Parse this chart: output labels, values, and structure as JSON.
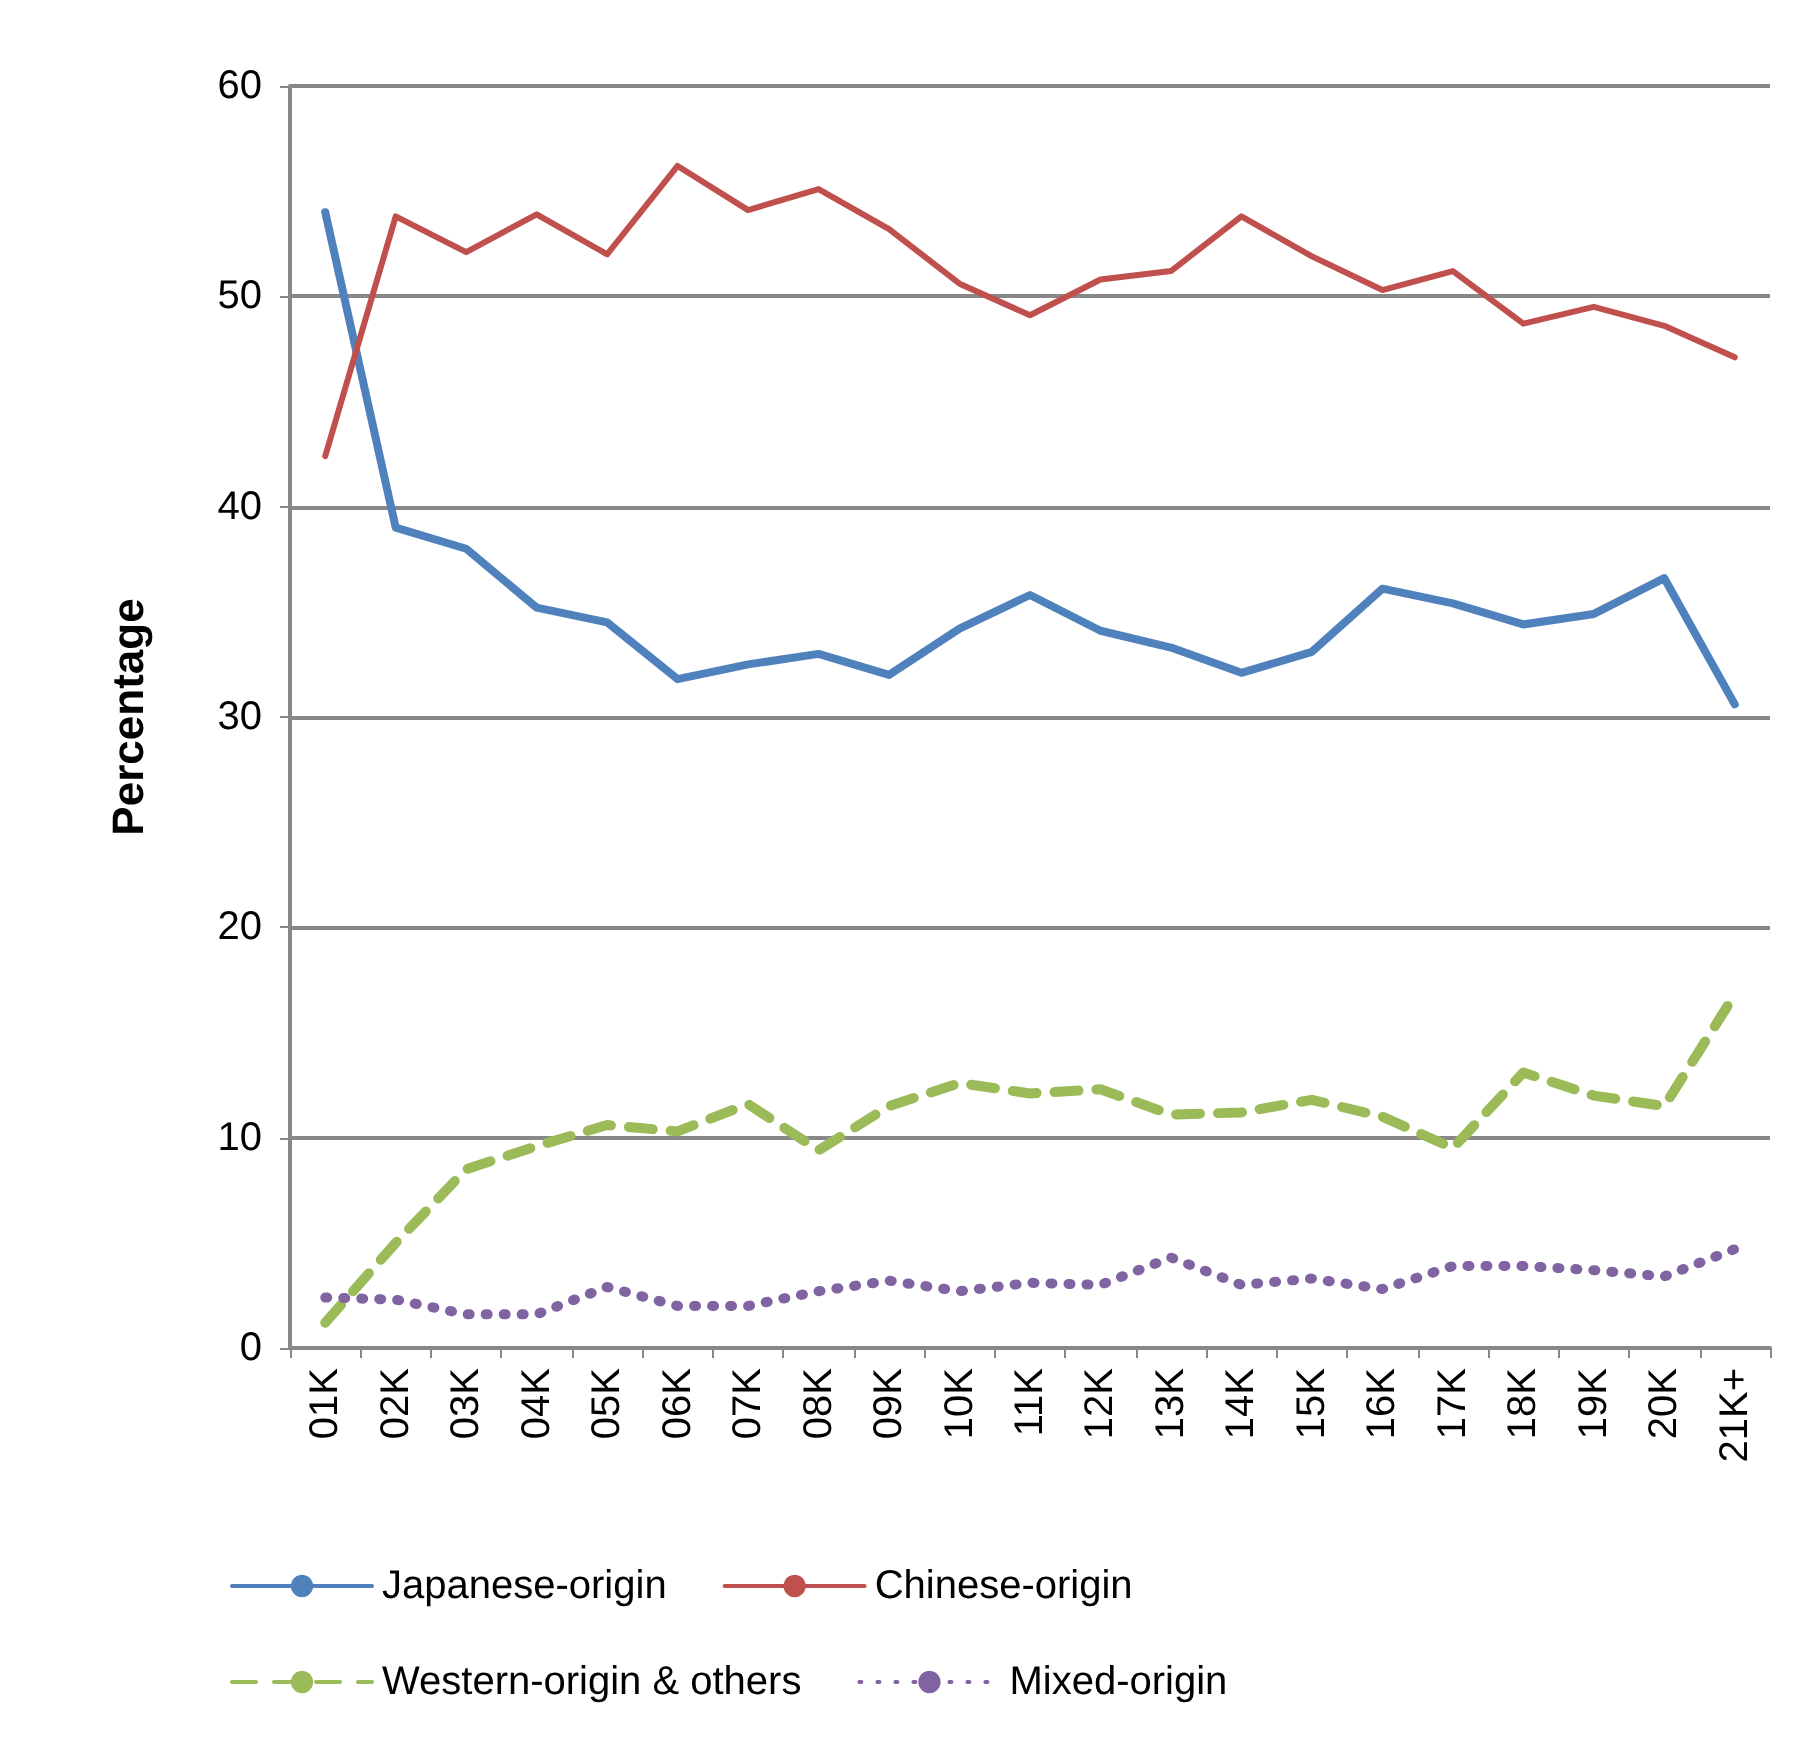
{
  "chart_data": {
    "type": "line",
    "ylabel": "Percentage",
    "categories": [
      "01K",
      "02K",
      "03K",
      "04K",
      "05K",
      "06K",
      "07K",
      "08K",
      "09K",
      "10K",
      "11K",
      "12K",
      "13K",
      "14K",
      "15K",
      "16K",
      "17K",
      "18K",
      "19K",
      "20K",
      "21K+"
    ],
    "series": [
      {
        "name": "Japanese-origin",
        "color": "#4f81bd",
        "line_style": "solid",
        "values": [
          54,
          39,
          38,
          35.2,
          34.5,
          31.8,
          32.5,
          33,
          32,
          34.2,
          35.8,
          34.1,
          33.3,
          32.1,
          33.1,
          36.1,
          35.4,
          34.4,
          34.9,
          36.6,
          30.6
        ]
      },
      {
        "name": "Chinese-origin",
        "color": "#c0504d",
        "line_style": "solid",
        "values": [
          42.4,
          53.8,
          52.1,
          53.9,
          52,
          56.2,
          54.1,
          55.1,
          53.2,
          50.6,
          49.1,
          50.8,
          51.2,
          53.8,
          51.9,
          50.3,
          51.2,
          48.7,
          49.5,
          48.6,
          47.1
        ]
      },
      {
        "name": "Western-origin & others",
        "color": "#9bbb59",
        "line_style": "dashed",
        "values": [
          1.2,
          5,
          8.5,
          9.6,
          10.6,
          10.3,
          11.6,
          9.4,
          11.5,
          12.6,
          12.1,
          12.3,
          11.1,
          11.2,
          11.8,
          11,
          9.5,
          13.1,
          12,
          11.5,
          16.8
        ]
      },
      {
        "name": "Mixed-origin",
        "color": "#8064a2",
        "line_style": "dotted",
        "values": [
          2.4,
          2.3,
          1.6,
          1.6,
          2.9,
          2,
          2,
          2.7,
          3.2,
          2.7,
          3.1,
          3,
          4.3,
          3,
          3.3,
          2.8,
          3.9,
          3.9,
          3.7,
          3.4,
          4.7
        ]
      }
    ],
    "ylim": [
      0,
      60
    ],
    "yticks": [
      0,
      10,
      20,
      30,
      40,
      50,
      60
    ],
    "grid": "y",
    "legend": "bottom",
    "marker": "none"
  }
}
